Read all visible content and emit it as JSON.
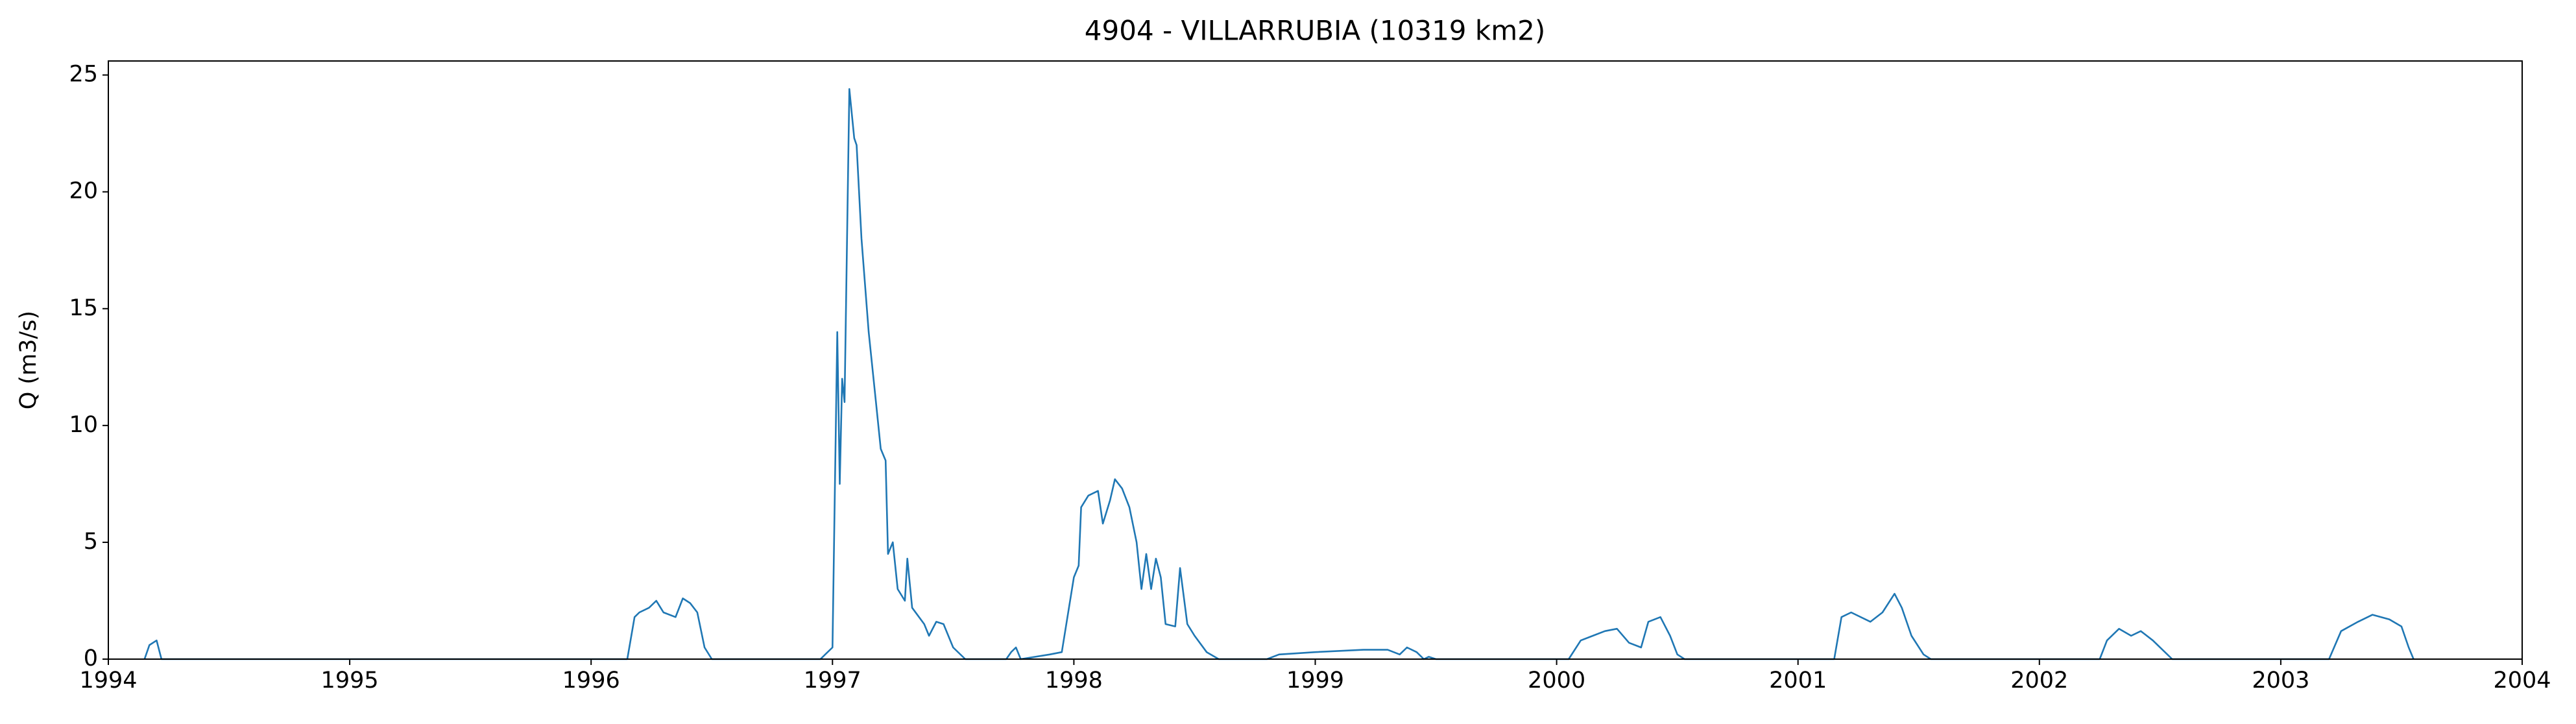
{
  "chart_data": {
    "type": "line",
    "title": "4904 - VILLARRUBIA (10319 km2)",
    "y_label": "Q (m3/s)",
    "x": [
      1994.15,
      1994.17,
      1994.2,
      1994.22,
      1996.15,
      1996.18,
      1996.2,
      1996.24,
      1996.27,
      1996.3,
      1996.35,
      1996.38,
      1996.41,
      1996.44,
      1996.47,
      1996.5,
      1996.95,
      1997.0,
      1997.01,
      1997.02,
      1997.03,
      1997.04,
      1997.05,
      1997.07,
      1997.09,
      1997.1,
      1997.12,
      1997.15,
      1997.18,
      1997.2,
      1997.22,
      1997.23,
      1997.25,
      1997.27,
      1997.3,
      1997.31,
      1997.33,
      1997.38,
      1997.4,
      1997.43,
      1997.46,
      1997.5,
      1997.55,
      1997.72,
      1997.74,
      1997.76,
      1997.78,
      1997.9,
      1997.95,
      1998.0,
      1998.02,
      1998.03,
      1998.06,
      1998.1,
      1998.12,
      1998.15,
      1998.17,
      1998.2,
      1998.23,
      1998.26,
      1998.28,
      1998.3,
      1998.32,
      1998.34,
      1998.36,
      1998.38,
      1998.42,
      1998.44,
      1998.47,
      1998.5,
      1998.55,
      1998.6,
      1998.8,
      1998.85,
      1999.0,
      1999.2,
      1999.3,
      1999.35,
      1999.38,
      1999.42,
      1999.45,
      1999.47,
      1999.5,
      2000.05,
      2000.1,
      2000.15,
      2000.2,
      2000.25,
      2000.3,
      2000.35,
      2000.38,
      2000.43,
      2000.47,
      2000.5,
      2000.53,
      2001.15,
      2001.18,
      2001.22,
      2001.3,
      2001.35,
      2001.4,
      2001.43,
      2001.47,
      2001.52,
      2001.55,
      2002.25,
      2002.28,
      2002.33,
      2002.38,
      2002.42,
      2002.47,
      2002.52,
      2002.55,
      2003.2,
      2003.25,
      2003.32,
      2003.38,
      2003.45,
      2003.5,
      2003.53,
      2003.55
    ],
    "series": [
      {
        "color": "#1f77b4",
        "values": [
          0,
          0.6,
          0.8,
          0,
          0,
          1.8,
          2.0,
          2.2,
          2.5,
          2.0,
          1.8,
          2.6,
          2.4,
          2.0,
          0.5,
          0,
          0,
          0.5,
          7.3,
          14.0,
          7.5,
          12.0,
          11.0,
          24.4,
          22.3,
          22.0,
          18.0,
          14.0,
          11.0,
          9.0,
          8.5,
          4.5,
          5.0,
          3.0,
          2.5,
          4.3,
          2.2,
          1.5,
          1.0,
          1.6,
          1.5,
          0.5,
          0,
          0,
          0.3,
          0.5,
          0,
          0.2,
          0.3,
          3.5,
          4.0,
          6.5,
          7.0,
          7.2,
          5.8,
          6.8,
          7.7,
          7.3,
          6.5,
          5.0,
          3.0,
          4.5,
          3.0,
          4.3,
          3.5,
          1.5,
          1.4,
          3.9,
          1.5,
          1.0,
          0.3,
          0,
          0,
          0.2,
          0.3,
          0.4,
          0.4,
          0.2,
          0.5,
          0.3,
          0,
          0.1,
          0,
          0,
          0.8,
          1.0,
          1.2,
          1.3,
          0.7,
          0.5,
          1.6,
          1.8,
          1.0,
          0.2,
          0,
          0,
          1.8,
          2.0,
          1.6,
          2.0,
          2.8,
          2.2,
          1.0,
          0.2,
          0,
          0,
          0.8,
          1.3,
          1.0,
          1.2,
          0.8,
          0.3,
          0,
          0,
          1.2,
          1.6,
          1.9,
          1.7,
          1.4,
          0.5,
          0
        ]
      }
    ],
    "xlim": [
      1994,
      2004
    ],
    "xticks": [
      1994,
      1995,
      1996,
      1997,
      1998,
      1999,
      2000,
      2001,
      2002,
      2003,
      2004
    ],
    "ylim": [
      0,
      25.6
    ],
    "yticks": [
      0,
      5,
      10,
      15,
      20,
      25
    ]
  }
}
